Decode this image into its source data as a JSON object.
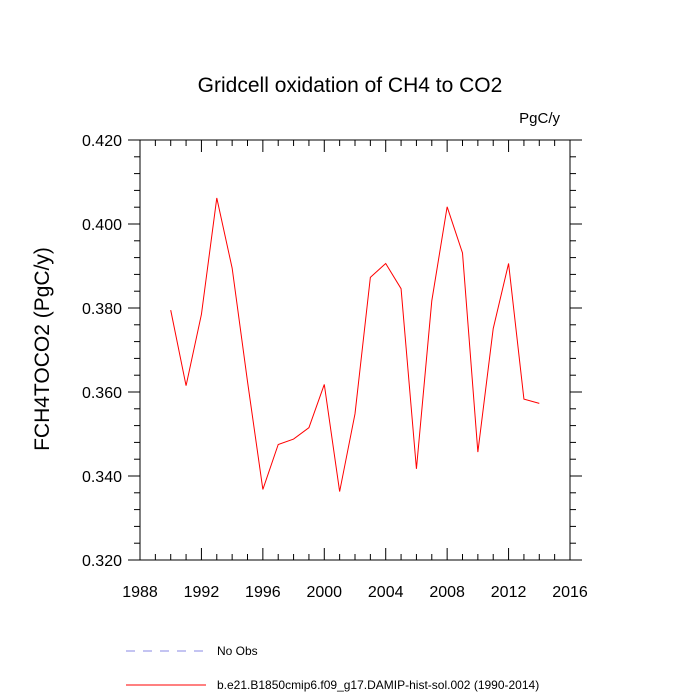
{
  "chart_data": {
    "type": "line",
    "title": "Gridcell oxidation of CH4 to CO2",
    "units": "PgC/y",
    "ylabel": "FCH4TOCO2  (PgC/y)",
    "xlabel": "",
    "xlim": [
      1988,
      2016
    ],
    "ylim": [
      0.32,
      0.42
    ],
    "x_ticks": [
      "1988",
      "1992",
      "1996",
      "2000",
      "2004",
      "2008",
      "2012",
      "2016"
    ],
    "y_ticks": [
      "0.320",
      "0.340",
      "0.360",
      "0.380",
      "0.400",
      "0.420"
    ],
    "grid": false,
    "legend_position": "bottom",
    "series": [
      {
        "name": "b.e21.B1850cmip6.f09_g17.DAMIP-hist-sol.002 (1990-2014)",
        "color": "#ff0000",
        "style": "solid",
        "x": [
          1990,
          1991,
          1992,
          1993,
          1994,
          1995,
          1996,
          1997,
          1998,
          1999,
          2000,
          2001,
          2002,
          2003,
          2004,
          2005,
          2006,
          2007,
          2008,
          2009,
          2010,
          2011,
          2012,
          2013,
          2014
        ],
        "y": [
          0.3795,
          0.3615,
          0.3785,
          0.4062,
          0.3895,
          0.3625,
          0.3368,
          0.3475,
          0.3488,
          0.3515,
          0.3618,
          0.3363,
          0.3548,
          0.3873,
          0.3906,
          0.3846,
          0.3417,
          0.3817,
          0.4041,
          0.3931,
          0.3457,
          0.3751,
          0.3906,
          0.3583,
          0.3573
        ]
      }
    ],
    "legend": [
      {
        "label": "No Obs",
        "color": "#8a8ae6",
        "style": "dashed"
      },
      {
        "label": "b.e21.B1850cmip6.f09_g17.DAMIP-hist-sol.002 (1990-2014)",
        "color": "#ff0000",
        "style": "solid"
      }
    ]
  }
}
